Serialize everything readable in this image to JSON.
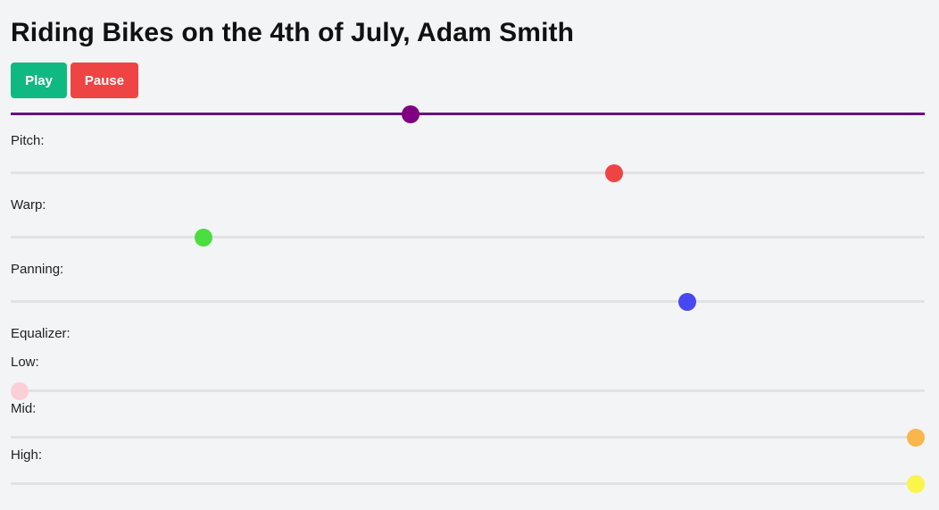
{
  "title": "Riding Bikes on the 4th of July, Adam Smith",
  "controls": {
    "play_label": "Play",
    "pause_label": "Pause",
    "play_color": "#10b981",
    "pause_color": "#ef4444"
  },
  "progress": {
    "value": 0.436,
    "color": "#800080"
  },
  "sliders": {
    "pitch": {
      "label": "Pitch:",
      "value": 0.663,
      "color": "#ef4444"
    },
    "warp": {
      "label": "Warp:",
      "value": 0.205,
      "color": "#4ade40"
    },
    "panning": {
      "label": "Panning:",
      "value": 0.745,
      "color": "#4848f0"
    }
  },
  "equalizer": {
    "label": "Equalizer:",
    "low": {
      "label": "Low:",
      "value": 0.0,
      "color": "#fbcfd6"
    },
    "mid": {
      "label": "Mid:",
      "value": 1.0,
      "color": "#f9b64c"
    },
    "high": {
      "label": "High:",
      "value": 1.0,
      "color": "#f9f54a"
    }
  }
}
